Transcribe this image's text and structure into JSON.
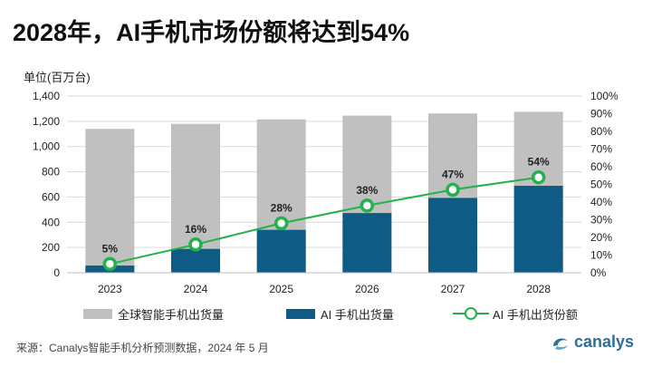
{
  "title": "2028年，AI手机市场份额将达到54%",
  "unit_label": "单位(百万台)",
  "source": "来源：Canalys智能手机分析预测数据，2024 年 5 月",
  "logo_text": "canalys",
  "colors": {
    "total": "#c0c0c0",
    "ai": "#0e5b85",
    "share": "#22b14c",
    "grid": "#d9d9d9"
  },
  "legend": {
    "total": "全球智能手机出货量",
    "ai": "AI 手机出货量",
    "share": "AI 手机出货份额"
  },
  "chart_data": {
    "type": "bar",
    "categories": [
      "2023",
      "2024",
      "2025",
      "2026",
      "2027",
      "2028"
    ],
    "series": [
      {
        "name": "全球智能手机出货量",
        "type": "bar",
        "values": [
          1140,
          1180,
          1215,
          1245,
          1262,
          1275
        ]
      },
      {
        "name": "AI 手机出货量",
        "type": "bar",
        "values": [
          57,
          189,
          340,
          473,
          593,
          689
        ]
      },
      {
        "name": "AI 手机出货份额",
        "type": "line",
        "axis": "right",
        "values": [
          5,
          16,
          28,
          38,
          47,
          54
        ],
        "labels": [
          "5%",
          "16%",
          "28%",
          "38%",
          "47%",
          "54%"
        ]
      }
    ],
    "ylabel": "单位(百万台)",
    "ylim": [
      0,
      1400
    ],
    "yticks": [
      "0",
      "200",
      "400",
      "600",
      "800",
      "1,000",
      "1,200",
      "1,400"
    ],
    "y2lim": [
      0,
      100
    ],
    "y2ticks": [
      "0%",
      "10%",
      "20%",
      "30%",
      "40%",
      "50%",
      "60%",
      "70%",
      "80%",
      "90%",
      "100%"
    ],
    "grid": true,
    "legend_position": "bottom"
  }
}
